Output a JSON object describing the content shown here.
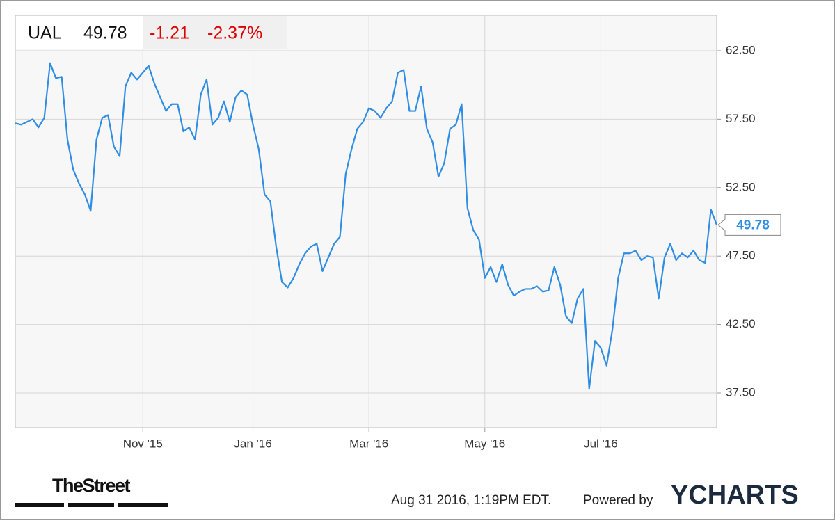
{
  "header": {
    "ticker": "UAL",
    "change": "-1.21",
    "change_pct": "-2.37%"
  },
  "footer": {
    "source": "TheStreet",
    "timestamp": "Aug 31 2016, 1:19PM EDT.",
    "powered": "Powered by",
    "brand": "YCHARTS"
  },
  "chart_data": {
    "type": "line",
    "color": "#2f8de4",
    "grid": true,
    "last_value_flag": true,
    "categories": [
      null,
      null,
      null,
      null,
      null,
      null,
      null,
      null,
      null,
      null,
      null,
      null,
      null,
      null,
      null,
      null,
      null,
      null,
      null,
      null,
      null,
      null,
      "Nov '15",
      null,
      null,
      null,
      null,
      null,
      null,
      null,
      null,
      null,
      null,
      null,
      null,
      null,
      null,
      null,
      null,
      null,
      null,
      "Jan '16",
      null,
      null,
      null,
      null,
      null,
      null,
      null,
      null,
      null,
      null,
      null,
      null,
      null,
      null,
      null,
      null,
      null,
      null,
      null,
      "Mar '16",
      null,
      null,
      null,
      null,
      null,
      null,
      null,
      null,
      null,
      null,
      null,
      null,
      null,
      null,
      null,
      null,
      null,
      null,
      null,
      "May '16",
      null,
      null,
      null,
      null,
      null,
      null,
      null,
      null,
      null,
      null,
      null,
      null,
      null,
      null,
      null,
      null,
      null,
      null,
      null,
      "Jul '16",
      null,
      null,
      null,
      null,
      null,
      null,
      null,
      null,
      null,
      null,
      null,
      null,
      null,
      null,
      null,
      null,
      null,
      null,
      null,
      null
    ],
    "values": [
      57.2,
      57.1,
      57.3,
      57.5,
      56.9,
      57.6,
      61.6,
      60.5,
      60.6,
      56.0,
      53.8,
      52.8,
      52.0,
      50.8,
      56.0,
      57.6,
      57.8,
      55.5,
      54.8,
      59.9,
      60.9,
      60.4,
      60.9,
      61.4,
      60.1,
      59.1,
      58.1,
      58.6,
      58.6,
      56.6,
      56.9,
      56.0,
      59.3,
      60.4,
      57.1,
      57.6,
      58.8,
      57.3,
      59.1,
      59.6,
      59.3,
      57.1,
      55.3,
      52.0,
      51.5,
      48.2,
      45.6,
      45.2,
      45.9,
      46.9,
      47.7,
      48.2,
      48.4,
      46.4,
      47.4,
      48.4,
      48.9,
      53.5,
      55.3,
      56.8,
      57.3,
      58.3,
      58.1,
      57.6,
      58.3,
      58.8,
      60.9,
      61.1,
      58.1,
      58.1,
      59.9,
      56.8,
      55.8,
      53.3,
      54.3,
      56.8,
      57.1,
      58.6,
      51.0,
      49.4,
      48.7,
      45.9,
      46.7,
      45.6,
      46.9,
      45.4,
      44.6,
      44.9,
      45.1,
      45.1,
      45.3,
      44.9,
      45.0,
      46.7,
      45.4,
      43.1,
      42.6,
      44.4,
      45.1,
      37.8,
      41.3,
      40.8,
      39.5,
      42.1,
      45.9,
      47.7,
      47.7,
      47.9,
      47.2,
      47.5,
      47.4,
      44.4,
      47.4,
      48.4,
      47.2,
      47.7,
      47.4,
      47.9,
      47.2,
      47.0,
      50.9,
      49.78
    ],
    "ylim": [
      34.96,
      65.09
    ],
    "yticks": [
      {
        "value": 37.5,
        "label": "37.50"
      },
      {
        "value": 42.5,
        "label": "42.50"
      },
      {
        "value": 47.5,
        "label": "47.50"
      },
      {
        "value": 52.5,
        "label": "52.50"
      },
      {
        "value": 57.5,
        "label": "57.50"
      },
      {
        "value": 62.5,
        "label": "62.50"
      }
    ]
  }
}
